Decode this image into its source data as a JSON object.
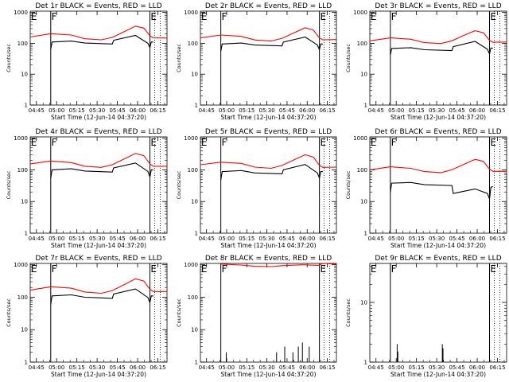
{
  "colors": {
    "events": "#000000",
    "lld": "#ff0000",
    "background": "#ffffff"
  },
  "chart_data": [
    {
      "type": "line",
      "title": "Det 1r BLACK = Events, RED = LLD",
      "ylabel": "Counts/sec",
      "xlabel": "Start Time (12-Jun-14 04:37:20)",
      "x_tick_labels": [
        "04:45",
        "05:00",
        "05:15",
        "05:30",
        "05:45",
        "06:00",
        "06:15"
      ],
      "y_tick_labels": [
        "1",
        "10",
        "100",
        "1000"
      ],
      "ylim": [
        1,
        1100
      ],
      "yscale": "log",
      "region_labels": [
        "E",
        "F",
        "E"
      ],
      "events_mode": "normal",
      "series": [
        {
          "name": "LLD",
          "color": "red",
          "points": [
            [
              0,
              160
            ],
            [
              0.15,
              205
            ],
            [
              0.3,
              185
            ],
            [
              0.4,
              140
            ],
            [
              0.52,
              130
            ],
            [
              0.6,
              155
            ],
            [
              0.68,
              230
            ],
            [
              0.77,
              360
            ],
            [
              0.83,
              310
            ],
            [
              0.875,
              175
            ],
            [
              0.9,
              150
            ],
            [
              1,
              148
            ]
          ]
        },
        {
          "name": "Events",
          "color": "black",
          "points": [
            [
              0.15,
              65
            ],
            [
              0.16,
              110
            ],
            [
              0.3,
              118
            ],
            [
              0.4,
              102
            ],
            [
              0.6,
              95
            ],
            [
              0.61,
              125
            ],
            [
              0.77,
              180
            ],
            [
              0.86,
              100
            ],
            [
              0.875,
              72
            ],
            [
              0.885,
              110
            ],
            [
              0.9,
              110
            ]
          ]
        }
      ]
    },
    {
      "type": "line",
      "title": "Det 2r BLACK = Events, RED = LLD",
      "ylabel": "Counts/sec",
      "xlabel": "Start Time (12-Jun-14 04:37:20)",
      "x_tick_labels": [
        "04:45",
        "05:00",
        "05:15",
        "05:30",
        "05:45",
        "06:00",
        "06:15"
      ],
      "y_tick_labels": [
        "1",
        "10",
        "100",
        "1000"
      ],
      "ylim": [
        1,
        1100
      ],
      "yscale": "log",
      "region_labels": [
        "E",
        "F",
        "E"
      ],
      "events_mode": "normal",
      "series": [
        {
          "name": "LLD",
          "color": "red",
          "points": [
            [
              0,
              150
            ],
            [
              0.15,
              185
            ],
            [
              0.3,
              168
            ],
            [
              0.4,
              128
            ],
            [
              0.52,
              118
            ],
            [
              0.6,
              145
            ],
            [
              0.68,
              210
            ],
            [
              0.77,
              320
            ],
            [
              0.83,
              270
            ],
            [
              0.875,
              150
            ],
            [
              0.9,
              130
            ],
            [
              1,
              132
            ]
          ]
        },
        {
          "name": "Events",
          "color": "black",
          "points": [
            [
              0.15,
              55
            ],
            [
              0.16,
              95
            ],
            [
              0.3,
              102
            ],
            [
              0.4,
              88
            ],
            [
              0.6,
              82
            ],
            [
              0.61,
              110
            ],
            [
              0.77,
              160
            ],
            [
              0.86,
              88
            ],
            [
              0.875,
              62
            ],
            [
              0.885,
              95
            ],
            [
              0.9,
              95
            ]
          ]
        }
      ]
    },
    {
      "type": "line",
      "title": "Det 3r BLACK = Events, RED = LLD",
      "ylabel": "Counts/sec",
      "xlabel": "Start Time (12-Jun-14 04:37:20)",
      "x_tick_labels": [
        "04:45",
        "05:00",
        "05:15",
        "05:30",
        "05:45",
        "06:00",
        "06:15"
      ],
      "y_tick_labels": [
        "1",
        "10",
        "100",
        "1000"
      ],
      "ylim": [
        1,
        1100
      ],
      "yscale": "log",
      "region_labels": [
        "E",
        "F",
        "E"
      ],
      "events_mode": "normal",
      "series": [
        {
          "name": "LLD",
          "color": "red",
          "points": [
            [
              0,
              120
            ],
            [
              0.15,
              150
            ],
            [
              0.3,
              135
            ],
            [
              0.4,
              105
            ],
            [
              0.52,
              98
            ],
            [
              0.6,
              120
            ],
            [
              0.68,
              175
            ],
            [
              0.77,
              255
            ],
            [
              0.83,
              220
            ],
            [
              0.875,
              125
            ],
            [
              0.9,
              108
            ],
            [
              1,
              110
            ]
          ]
        },
        {
          "name": "Events",
          "color": "black",
          "points": [
            [
              0.15,
              42
            ],
            [
              0.16,
              68
            ],
            [
              0.3,
              72
            ],
            [
              0.4,
              62
            ],
            [
              0.6,
              58
            ],
            [
              0.61,
              78
            ],
            [
              0.77,
              115
            ],
            [
              0.86,
              64
            ],
            [
              0.875,
              45
            ],
            [
              0.885,
              70
            ],
            [
              0.9,
              70
            ]
          ]
        }
      ]
    },
    {
      "type": "line",
      "title": "Det 4r BLACK = Events, RED = LLD",
      "ylabel": "Counts/sec",
      "xlabel": "Start Time (12-Jun-14 04:37:20)",
      "x_tick_labels": [
        "04:45",
        "05:00",
        "05:15",
        "05:30",
        "05:45",
        "06:00",
        "06:15"
      ],
      "y_tick_labels": [
        "1",
        "10",
        "100",
        "1000"
      ],
      "ylim": [
        1,
        1100
      ],
      "yscale": "log",
      "region_labels": [
        "E",
        "F",
        "E"
      ],
      "events_mode": "normal",
      "series": [
        {
          "name": "LLD",
          "color": "red",
          "points": [
            [
              0,
              155
            ],
            [
              0.15,
              190
            ],
            [
              0.3,
              170
            ],
            [
              0.4,
              130
            ],
            [
              0.52,
              120
            ],
            [
              0.6,
              145
            ],
            [
              0.68,
              215
            ],
            [
              0.77,
              330
            ],
            [
              0.83,
              280
            ],
            [
              0.875,
              155
            ],
            [
              0.9,
              130
            ],
            [
              1,
              130
            ]
          ]
        },
        {
          "name": "Events",
          "color": "black",
          "points": [
            [
              0.15,
              55
            ],
            [
              0.16,
              100
            ],
            [
              0.3,
              108
            ],
            [
              0.4,
              92
            ],
            [
              0.6,
              85
            ],
            [
              0.61,
              115
            ],
            [
              0.77,
              165
            ],
            [
              0.86,
              90
            ],
            [
              0.875,
              60
            ],
            [
              0.885,
              100
            ],
            [
              0.9,
              100
            ]
          ]
        }
      ]
    },
    {
      "type": "line",
      "title": "Det 5r BLACK = Events, RED = LLD",
      "ylabel": "Counts/sec",
      "xlabel": "Start Time (12-Jun-14 04:37:20)",
      "x_tick_labels": [
        "04:45",
        "05:00",
        "05:15",
        "05:30",
        "05:45",
        "06:00",
        "06:15"
      ],
      "y_tick_labels": [
        "1",
        "10",
        "100",
        "1000"
      ],
      "ylim": [
        1,
        1100
      ],
      "yscale": "log",
      "region_labels": [
        "E",
        "F",
        "E"
      ],
      "events_mode": "normal",
      "series": [
        {
          "name": "LLD",
          "color": "red",
          "points": [
            [
              0,
              145
            ],
            [
              0.15,
              175
            ],
            [
              0.3,
              160
            ],
            [
              0.4,
              122
            ],
            [
              0.52,
              112
            ],
            [
              0.6,
              138
            ],
            [
              0.68,
              200
            ],
            [
              0.77,
              300
            ],
            [
              0.83,
              255
            ],
            [
              0.875,
              140
            ],
            [
              0.9,
              120
            ],
            [
              1,
              122
            ]
          ]
        },
        {
          "name": "Events",
          "color": "black",
          "points": [
            [
              0.15,
              48
            ],
            [
              0.16,
              88
            ],
            [
              0.3,
              95
            ],
            [
              0.4,
              80
            ],
            [
              0.6,
              75
            ],
            [
              0.61,
              100
            ],
            [
              0.77,
              148
            ],
            [
              0.86,
              80
            ],
            [
              0.875,
              55
            ],
            [
              0.885,
              88
            ],
            [
              0.9,
              88
            ]
          ]
        }
      ]
    },
    {
      "type": "line",
      "title": "Det 6r BLACK = Events, RED = LLD",
      "ylabel": "Counts/sec",
      "xlabel": "Start Time (12-Jun-14 04:37:20)",
      "x_tick_labels": [
        "04:45",
        "05:00",
        "05:15",
        "05:30",
        "05:45",
        "06:00",
        "06:15"
      ],
      "y_tick_labels": [
        "1",
        "10",
        "100",
        "1000"
      ],
      "ylim": [
        1,
        1100
      ],
      "yscale": "log",
      "region_labels": [
        "E",
        "F",
        "E"
      ],
      "events_mode": "normal",
      "series": [
        {
          "name": "LLD",
          "color": "red",
          "points": [
            [
              0,
              100
            ],
            [
              0.15,
              125
            ],
            [
              0.3,
              112
            ],
            [
              0.4,
              88
            ],
            [
              0.52,
              82
            ],
            [
              0.6,
              100
            ],
            [
              0.68,
              145
            ],
            [
              0.77,
              215
            ],
            [
              0.83,
              185
            ],
            [
              0.875,
              105
            ],
            [
              0.9,
              90
            ],
            [
              1,
              90
            ]
          ]
        },
        {
          "name": "Events",
          "color": "black",
          "points": [
            [
              0.15,
              20
            ],
            [
              0.16,
              38
            ],
            [
              0.3,
              40
            ],
            [
              0.4,
              34
            ],
            [
              0.6,
              32
            ],
            [
              0.61,
              18
            ],
            [
              0.77,
              25
            ],
            [
              0.86,
              18
            ],
            [
              0.875,
              12
            ],
            [
              0.885,
              28
            ],
            [
              0.9,
              30
            ]
          ]
        }
      ]
    },
    {
      "type": "line",
      "title": "Det 7r BLACK = Events, RED = LLD",
      "ylabel": "Counts/sec",
      "xlabel": "Start Time (12-Jun-14 04:37:20)",
      "x_tick_labels": [
        "04:45",
        "05:00",
        "05:15",
        "05:30",
        "05:45",
        "06:00",
        "06:15"
      ],
      "y_tick_labels": [
        "1",
        "10",
        "100",
        "1000"
      ],
      "ylim": [
        1,
        1100
      ],
      "yscale": "log",
      "region_labels": [
        "E",
        "F",
        "E"
      ],
      "events_mode": "normal",
      "series": [
        {
          "name": "LLD",
          "color": "red",
          "points": [
            [
              0,
              165
            ],
            [
              0.15,
              210
            ],
            [
              0.3,
              190
            ],
            [
              0.4,
              145
            ],
            [
              0.52,
              132
            ],
            [
              0.6,
              160
            ],
            [
              0.68,
              235
            ],
            [
              0.77,
              370
            ],
            [
              0.83,
              315
            ],
            [
              0.875,
              175
            ],
            [
              0.9,
              150
            ],
            [
              1,
              150
            ]
          ]
        },
        {
          "name": "Events",
          "color": "black",
          "points": [
            [
              0.15,
              60
            ],
            [
              0.16,
              110
            ],
            [
              0.3,
              118
            ],
            [
              0.4,
              100
            ],
            [
              0.6,
              92
            ],
            [
              0.61,
              125
            ],
            [
              0.77,
              180
            ],
            [
              0.86,
              98
            ],
            [
              0.875,
              68
            ],
            [
              0.885,
              110
            ],
            [
              0.9,
              110
            ]
          ]
        }
      ]
    },
    {
      "type": "line",
      "title": "Det 8r BLACK = Events, RED = LLD",
      "ylabel": "Counts/sec",
      "xlabel": "Start Time (12-Jun-14 04:37:20)",
      "x_tick_labels": [
        "04:45",
        "05:00",
        "05:15",
        "05:30",
        "05:45",
        "06:00",
        "06:15"
      ],
      "y_tick_labels": [
        "1",
        "10",
        "100",
        "1000"
      ],
      "ylim": [
        1,
        1100
      ],
      "yscale": "log",
      "region_labels": [
        "E",
        "F",
        "E"
      ],
      "events_mode": "sparse",
      "series": [
        {
          "name": "LLD",
          "color": "red",
          "points": [
            [
              0.15,
              1050
            ],
            [
              0.3,
              980
            ],
            [
              0.4,
              900
            ],
            [
              0.52,
              880
            ],
            [
              0.6,
              940
            ],
            [
              0.75,
              1000
            ],
            [
              0.87,
              960
            ],
            [
              0.9,
              1100
            ],
            [
              1,
              1050
            ]
          ]
        }
      ],
      "event_spikes": [
        {
          "x": 0.19,
          "y": 2
        },
        {
          "x": 0.56,
          "y": 2
        },
        {
          "x": 0.62,
          "y": 3
        },
        {
          "x": 0.68,
          "y": 2
        },
        {
          "x": 0.72,
          "y": 3
        },
        {
          "x": 0.75,
          "y": 4
        },
        {
          "x": 0.8,
          "y": 3
        }
      ]
    },
    {
      "type": "line",
      "title": "Det 9r BLACK = Events, RED = LLD",
      "ylabel": "Counts/sec",
      "xlabel": "Start Time (12-Jun-14 04:37:20)",
      "x_tick_labels": [
        "04:45",
        "05:00",
        "05:15",
        "05:30",
        "05:45",
        "06:00",
        "06:15"
      ],
      "y_tick_labels": [
        "1",
        "10"
      ],
      "ylim": [
        1,
        45
      ],
      "yscale": "log",
      "region_labels": [
        "E",
        "F",
        "E"
      ],
      "events_mode": "sparse",
      "series": [],
      "event_spikes": [
        {
          "x": 0.2,
          "y": 2
        },
        {
          "x": 0.205,
          "y": 1.5
        },
        {
          "x": 0.53,
          "y": 2
        },
        {
          "x": 0.535,
          "y": 1.7
        }
      ]
    }
  ]
}
